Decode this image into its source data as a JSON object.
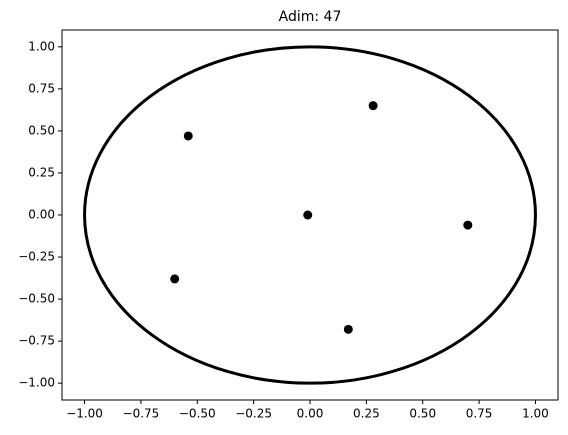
{
  "chart_data": {
    "type": "scatter",
    "title": "Adim: 47",
    "x": [
      -0.54,
      0.28,
      -0.01,
      0.7,
      -0.6,
      0.17
    ],
    "values": [
      0.47,
      0.65,
      0.0,
      -0.06,
      -0.38,
      -0.68
    ],
    "color": "#000000",
    "circle": {
      "center": [
        0,
        0
      ],
      "radius": 1,
      "color": "#000000"
    },
    "xlim": [
      -1.1,
      1.1
    ],
    "ylim": [
      -1.1,
      1.1
    ],
    "xticks": [
      {
        "value": -1,
        "label": "−1.00"
      },
      {
        "value": -0.75,
        "label": "−0.75"
      },
      {
        "value": -0.5,
        "label": "−0.50"
      },
      {
        "value": -0.25,
        "label": "−0.25"
      },
      {
        "value": 0,
        "label": "0.00"
      },
      {
        "value": 0.25,
        "label": "0.25"
      },
      {
        "value": 0.5,
        "label": "0.50"
      },
      {
        "value": 0.75,
        "label": "0.75"
      },
      {
        "value": 1,
        "label": "1.00"
      }
    ],
    "yticks": [
      {
        "value": -1,
        "label": "−1.00"
      },
      {
        "value": -0.75,
        "label": "−0.75"
      },
      {
        "value": -0.5,
        "label": "−0.50"
      },
      {
        "value": -0.25,
        "label": "−0.25"
      },
      {
        "value": 0,
        "label": "0.00"
      },
      {
        "value": 0.25,
        "label": "0.25"
      },
      {
        "value": 0.5,
        "label": "0.50"
      },
      {
        "value": 0.75,
        "label": "0.75"
      },
      {
        "value": 1,
        "label": "1.00"
      }
    ]
  }
}
